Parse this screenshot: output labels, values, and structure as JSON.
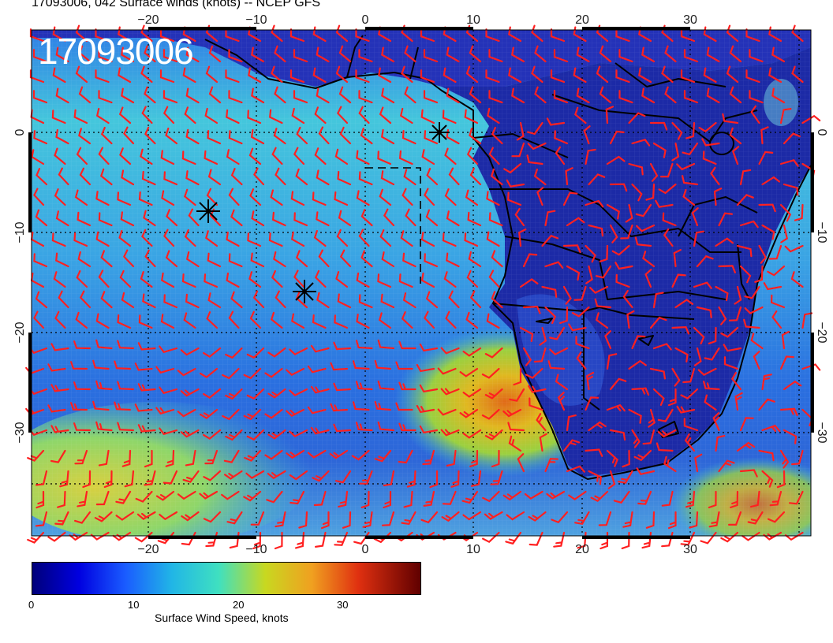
{
  "title": "17093006, 042 Surface winds (knots) -- NCEP GFS",
  "datestamp": "17093006",
  "map": {
    "lon_ticks": [
      "−20",
      "−10",
      "0",
      "10",
      "20",
      "30"
    ],
    "lat_ticks": [
      "0",
      "−10",
      "−20",
      "−30"
    ],
    "markers": [
      "storm-center",
      "storm-center",
      "storm-center"
    ]
  },
  "colorbar": {
    "ticks": [
      "0",
      "10",
      "20",
      "30"
    ],
    "label": "Surface Wind Speed, knots",
    "colors": [
      "#00007a",
      "#0000e0",
      "#1a5cff",
      "#21b6e6",
      "#3fe0c0",
      "#c8d820",
      "#f0a020",
      "#e03010",
      "#600000"
    ]
  },
  "colors": {
    "barb": "#ff2020",
    "land": "#1a2ea8",
    "ocean": "#2a9de0"
  }
}
